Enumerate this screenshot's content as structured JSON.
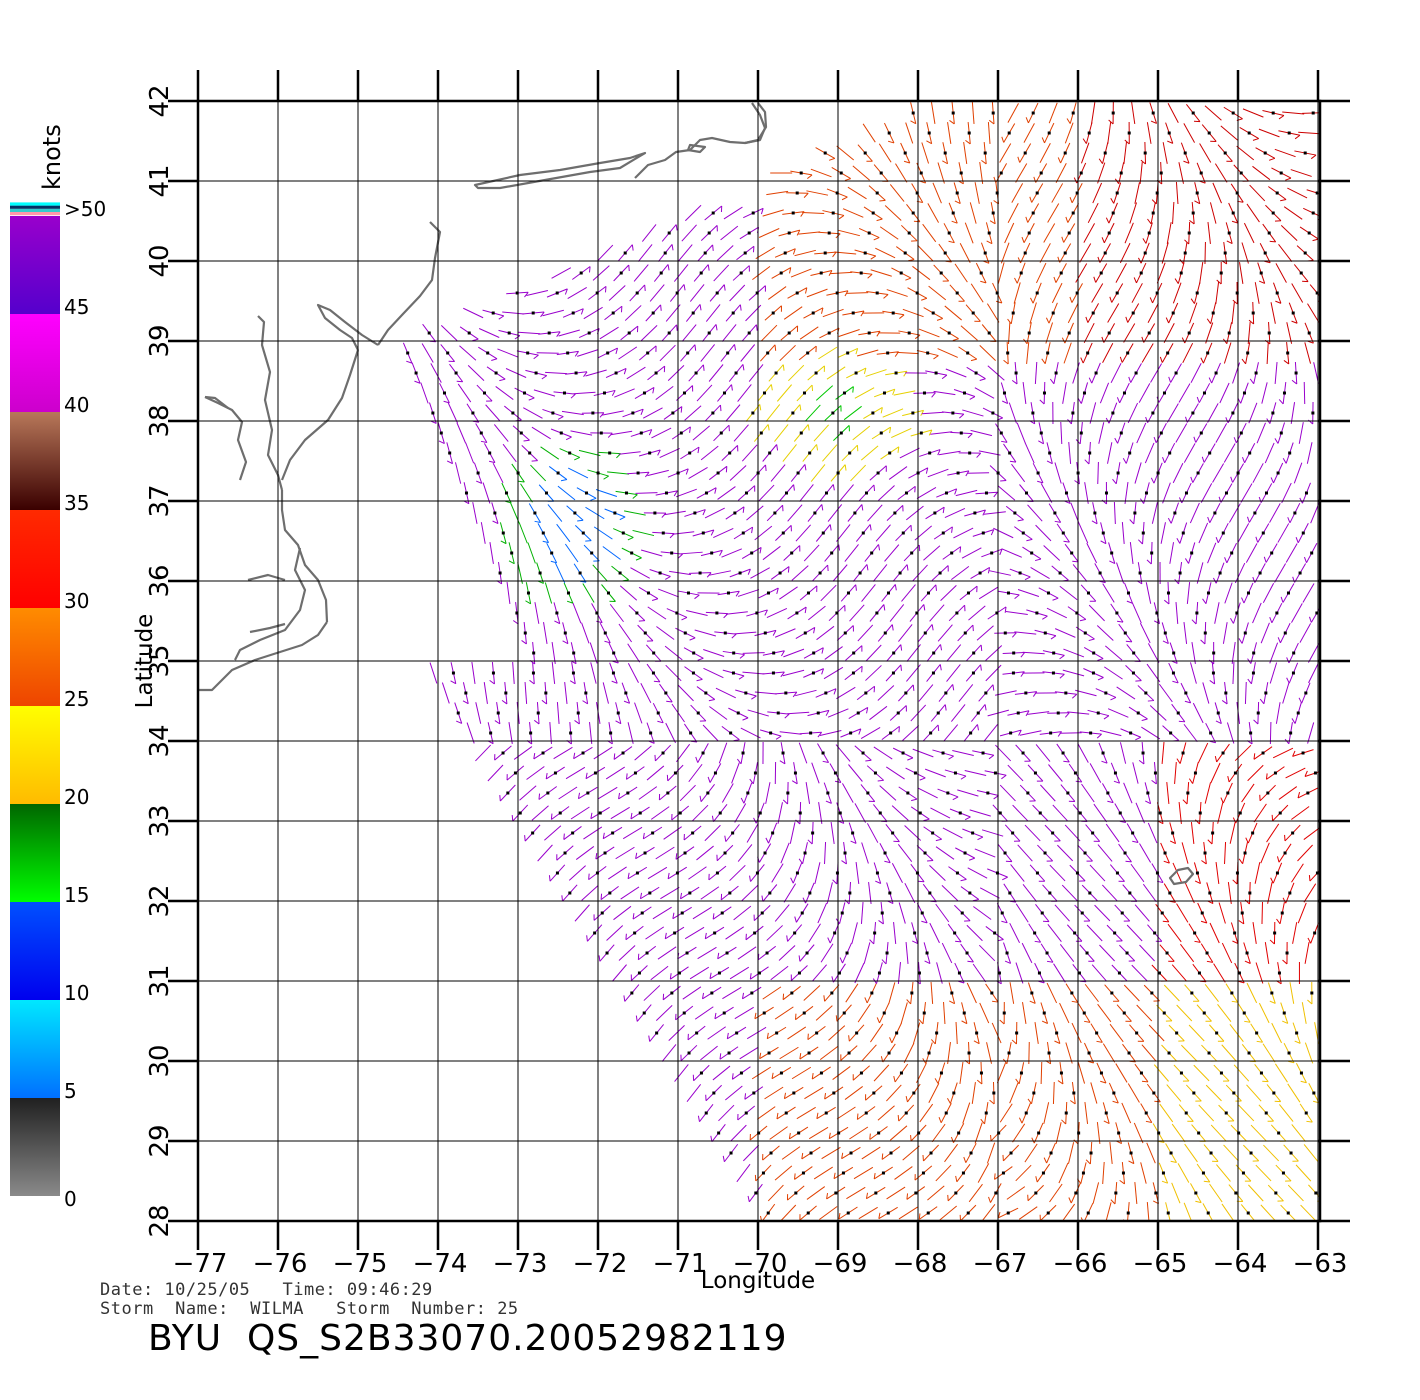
{
  "axes": {
    "x_title": "Longitude",
    "y_title": "Latitude",
    "x_ticks": [
      "-77",
      "-76",
      "-75",
      "-74",
      "-73",
      "-72",
      "-71",
      "-70",
      "-69",
      "-68",
      "-67",
      "-66",
      "-65",
      "-64",
      "-63"
    ],
    "y_ticks": [
      "28",
      "29",
      "30",
      "31",
      "32",
      "33",
      "34",
      "35",
      "36",
      "37",
      "38",
      "39",
      "40",
      "41",
      "42"
    ]
  },
  "legend": {
    "unit": "knots",
    "labels": [
      "0",
      "5",
      "10",
      "15",
      "20",
      "25",
      "30",
      "35",
      "40",
      "45",
      ">50"
    ],
    "bands": [
      {
        "from": 0,
        "to": 5,
        "top": "#202020",
        "bottom": "#8a8a8a"
      },
      {
        "from": 5,
        "to": 10,
        "top": "#00e8ff",
        "bottom": "#0070ff"
      },
      {
        "from": 10,
        "to": 15,
        "top": "#0050ff",
        "bottom": "#0000ee"
      },
      {
        "from": 15,
        "to": 20,
        "top": "#006600",
        "bottom": "#00ff00"
      },
      {
        "from": 20,
        "to": 25,
        "top": "#ffff00",
        "bottom": "#ffbb00"
      },
      {
        "from": 25,
        "to": 30,
        "top": "#ff8c00",
        "bottom": "#ee4400"
      },
      {
        "from": 30,
        "to": 35,
        "top": "#ff2a00",
        "bottom": "#ff0000"
      },
      {
        "from": 35,
        "to": 40,
        "top": "#b8785a",
        "bottom": "#3a0000"
      },
      {
        "from": 40,
        "to": 45,
        "top": "#ff00ff",
        "bottom": "#cc00cc"
      },
      {
        "from": 45,
        "to": 50,
        "top": "#9900cc",
        "bottom": "#5500cc"
      }
    ],
    "overflow_colors": [
      "#ff99aa",
      "#33cccc",
      "#003366",
      "#00ffff"
    ]
  },
  "map": {
    "lon_range": [
      -77,
      -63
    ],
    "lat_range": [
      28,
      42
    ],
    "coast_color": "#6e6e6e",
    "grid_color": "#000000"
  },
  "metadata": {
    "line1": "Date: 10/25/05   Time: 09:46:29",
    "line2": "Storm  Name:  WILMA   Storm  Number: 25",
    "product_id": "BYU  QS_S2B33070.20052982119"
  }
}
